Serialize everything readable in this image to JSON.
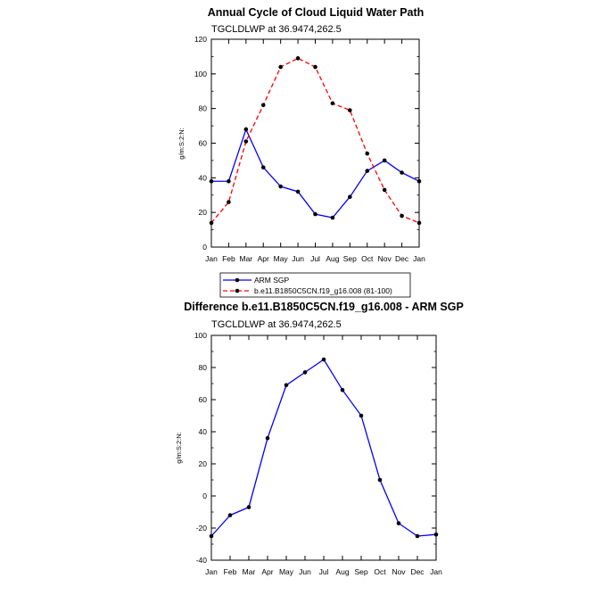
{
  "chart_data": [
    {
      "type": "line",
      "title": "Annual Cycle of Cloud Liquid Water Path",
      "subtitle": "TGCLDLWP at 36.9474,262.5",
      "ylabel": "g/m:S:2:N:",
      "xlabel": "",
      "categories": [
        "Jan",
        "Feb",
        "Mar",
        "Apr",
        "May",
        "Jun",
        "Jul",
        "Aug",
        "Sep",
        "Oct",
        "Nov",
        "Dec",
        "Jan"
      ],
      "ylim": [
        0,
        120
      ],
      "yticks": [
        "0",
        "20",
        "40",
        "60",
        "80",
        "100",
        "120"
      ],
      "grid": false,
      "legend_position": "bottom-left",
      "series": [
        {
          "name": "ARM SGP",
          "color": "#0000ff",
          "dash": "solid",
          "values": [
            38,
            38,
            68,
            46,
            35,
            32,
            19,
            17,
            29,
            44,
            50,
            43,
            38
          ]
        },
        {
          "name": "b.e11.B1850C5CN.f19_g16.008 (81-100)",
          "color": "#ff0000",
          "dash": "dashed",
          "values": [
            14,
            26,
            61,
            82,
            104,
            109,
            104,
            83,
            79,
            54,
            33,
            18,
            14
          ]
        }
      ]
    },
    {
      "type": "line",
      "title": "Difference b.e11.B1850C5CN.f19_g16.008 - ARM SGP",
      "subtitle": "TGCLDLWP at 36.9474,262.5",
      "ylabel": "g/m:S:2:N:",
      "xlabel": "",
      "categories": [
        "Jan",
        "Feb",
        "Mar",
        "Apr",
        "May",
        "Jun",
        "Jul",
        "Aug",
        "Sep",
        "Oct",
        "Nov",
        "Dec",
        "Jan"
      ],
      "ylim": [
        -40,
        100
      ],
      "yticks": [
        "-40",
        "-20",
        "0",
        "20",
        "40",
        "60",
        "80",
        "100"
      ],
      "grid": false,
      "series": [
        {
          "color": "#0000ff",
          "dash": "solid",
          "values": [
            -25,
            -12,
            -7,
            36,
            69,
            77,
            85,
            66,
            50,
            10,
            -17,
            -25,
            -24
          ]
        }
      ]
    }
  ]
}
